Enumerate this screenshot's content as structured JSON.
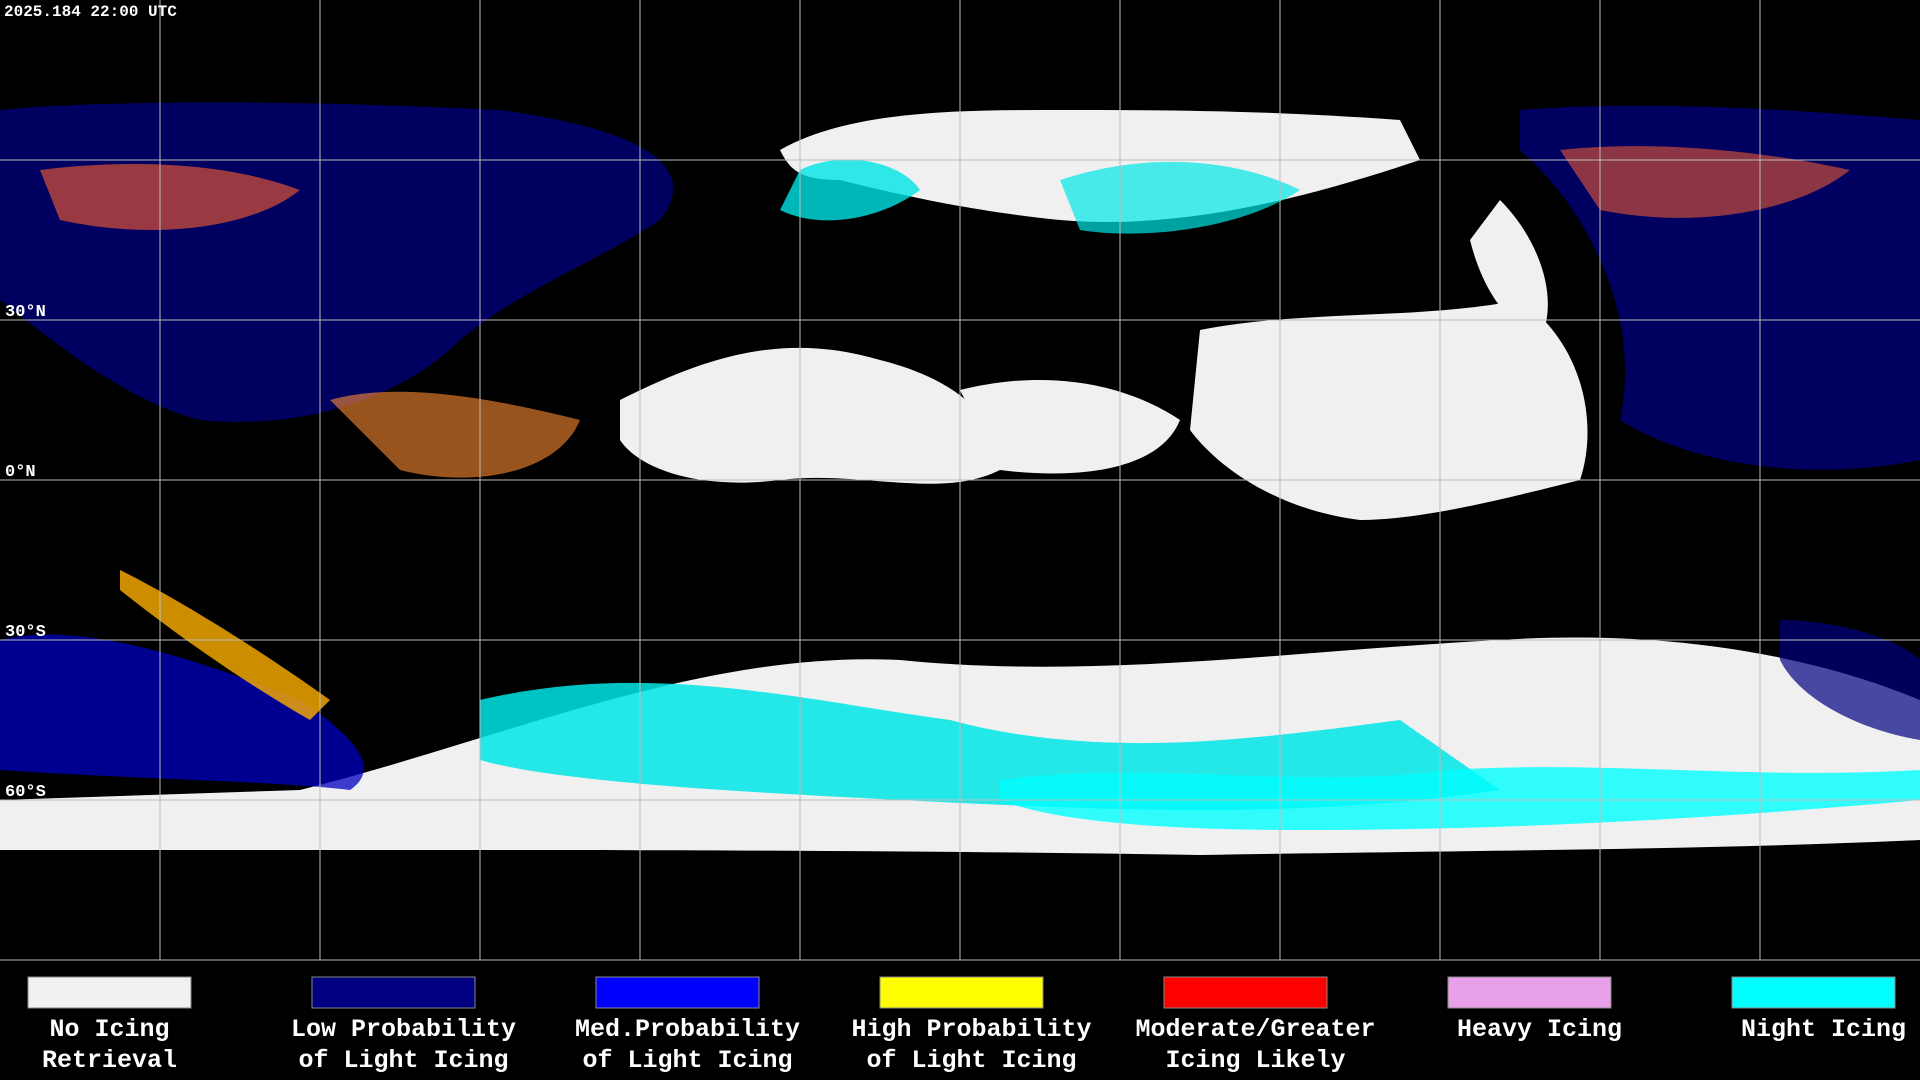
{
  "header": {
    "timestamp": "2025.184 22:00 UTC"
  },
  "map": {
    "latitude_labels": [
      "30°N",
      "0°N",
      "30°S",
      "60°S"
    ]
  },
  "legend": {
    "items": [
      {
        "color": "#f0f0f0",
        "label": [
          "No Icing",
          "Retrieval"
        ]
      },
      {
        "color": "#000080",
        "label": [
          "Low Probability",
          "of Light Icing"
        ]
      },
      {
        "color": "#0000ff",
        "label": [
          "Med.Probability",
          "of Light Icing"
        ]
      },
      {
        "color": "#ffff00",
        "label": [
          "High Probability",
          "of Light Icing"
        ]
      },
      {
        "color": "#ff0000",
        "label": [
          "Moderate/Greater",
          "Icing Likely"
        ]
      },
      {
        "color": "#e8a0e8",
        "label": [
          "Heavy Icing",
          ""
        ]
      },
      {
        "color": "#00ffff",
        "label": [
          "Night Icing",
          ""
        ]
      }
    ]
  }
}
